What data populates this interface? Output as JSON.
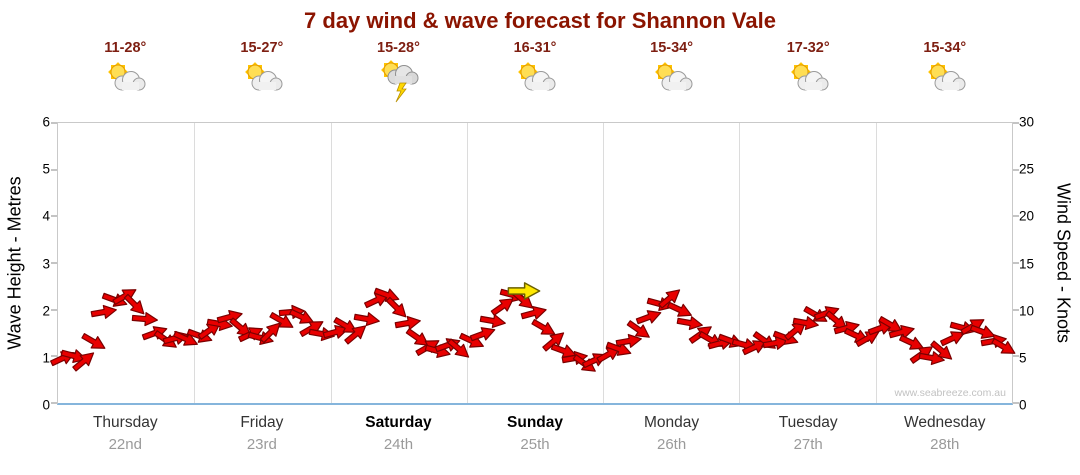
{
  "title": "7 day wind & wave forecast for Shannon Vale",
  "watermark": "www.seabreeze.com.au",
  "days": [
    {
      "name": "Thursday",
      "date": "22nd",
      "temp": "11-28°",
      "icon": "partly-cloudy",
      "bold": false
    },
    {
      "name": "Friday",
      "date": "23rd",
      "temp": "15-27°",
      "icon": "partly-cloudy",
      "bold": false
    },
    {
      "name": "Saturday",
      "date": "24th",
      "temp": "15-28°",
      "icon": "storm",
      "bold": true
    },
    {
      "name": "Sunday",
      "date": "25th",
      "temp": "16-31°",
      "icon": "partly-cloudy",
      "bold": true
    },
    {
      "name": "Monday",
      "date": "26th",
      "temp": "15-34°",
      "icon": "partly-cloudy",
      "bold": false
    },
    {
      "name": "Tuesday",
      "date": "27th",
      "temp": "17-32°",
      "icon": "partly-cloudy",
      "bold": false
    },
    {
      "name": "Wednesday",
      "date": "28th",
      "temp": "15-34°",
      "icon": "partly-cloudy",
      "bold": false
    }
  ],
  "axes": {
    "left_label": "Wave Height - Metres",
    "right_label": "Wind Speed - Knots",
    "left_ticks": [
      0,
      1,
      2,
      3,
      4,
      5,
      6
    ],
    "right_ticks": [
      0,
      5,
      10,
      15,
      20,
      25,
      30
    ],
    "left_range": [
      0,
      6
    ],
    "right_range": [
      0,
      30
    ]
  },
  "colors": {
    "title": "#8B1400",
    "temp": "#7E1F12",
    "arrow_fill": "#E80000",
    "arrow_stroke": "#7A0000",
    "highlight_arrow_fill": "#FFE800",
    "highlight_arrow_stroke": "#6B6000",
    "gridline": "#dcdcdc",
    "bottom_axis": "#85b5dc"
  },
  "chart_data": {
    "type": "scatter",
    "subtype": "wind-direction-arrows",
    "title": "7 day wind & wave forecast for Shannon Vale",
    "x_categories": [
      "Thursday 22nd",
      "Friday 23rd",
      "Saturday 24th",
      "Sunday 25th",
      "Monday 26th",
      "Tuesday 27th",
      "Wednesday 28th"
    ],
    "x_range_days": [
      0,
      7
    ],
    "ylabel_left": "Wave Height - Metres",
    "ylabel_right": "Wind Speed - Knots",
    "ylim_left_metres": [
      0,
      6
    ],
    "ylim_right_knots": [
      0,
      30
    ],
    "grid": "vertical-day-boundaries",
    "arrow_format": [
      "t_days",
      "wind_speed_knots",
      "rotation_deg"
    ],
    "arrows": [
      [
        0.04,
        4.8,
        -25
      ],
      [
        0.115,
        5.0,
        15
      ],
      [
        0.19,
        4.5,
        -40
      ],
      [
        0.265,
        6.5,
        30
      ],
      [
        0.34,
        9.8,
        -10
      ],
      [
        0.415,
        11.0,
        20
      ],
      [
        0.49,
        11.5,
        -30
      ],
      [
        0.565,
        10.5,
        45
      ],
      [
        0.64,
        9.0,
        5
      ],
      [
        0.715,
        7.5,
        -20
      ],
      [
        0.79,
        6.8,
        35
      ],
      [
        0.865,
        7.0,
        -15
      ],
      [
        0.94,
        6.9,
        25
      ],
      [
        1.04,
        7.2,
        20
      ],
      [
        1.115,
        7.8,
        -35
      ],
      [
        1.19,
        8.5,
        10
      ],
      [
        1.265,
        9.2,
        -15
      ],
      [
        1.34,
        8.0,
        40
      ],
      [
        1.415,
        7.4,
        -25
      ],
      [
        1.49,
        7.0,
        15
      ],
      [
        1.565,
        7.6,
        -45
      ],
      [
        1.64,
        8.8,
        30
      ],
      [
        1.715,
        9.8,
        -5
      ],
      [
        1.79,
        9.2,
        25
      ],
      [
        1.865,
        8.0,
        -30
      ],
      [
        1.94,
        7.4,
        10
      ],
      [
        2.04,
        7.6,
        -15
      ],
      [
        2.115,
        8.2,
        30
      ],
      [
        2.19,
        7.4,
        -40
      ],
      [
        2.265,
        9.0,
        10
      ],
      [
        2.34,
        11.0,
        -25
      ],
      [
        2.415,
        11.6,
        20
      ],
      [
        2.49,
        10.2,
        45
      ],
      [
        2.565,
        8.6,
        -10
      ],
      [
        2.64,
        7.0,
        35
      ],
      [
        2.715,
        6.0,
        -30
      ],
      [
        2.79,
        5.6,
        15
      ],
      [
        2.865,
        6.2,
        -20
      ],
      [
        2.94,
        5.8,
        40
      ],
      [
        3.04,
        6.6,
        25
      ],
      [
        3.115,
        7.4,
        -20
      ],
      [
        3.19,
        8.8,
        10
      ],
      [
        3.265,
        10.4,
        -35
      ],
      [
        3.34,
        11.6,
        15
      ],
      [
        3.415,
        11.0,
        40
      ],
      [
        3.49,
        9.6,
        -15
      ],
      [
        3.565,
        8.0,
        30
      ],
      [
        3.64,
        6.6,
        -40
      ],
      [
        3.715,
        5.6,
        20
      ],
      [
        3.79,
        4.8,
        -10
      ],
      [
        3.865,
        4.2,
        35
      ],
      [
        3.94,
        4.6,
        -25
      ],
      [
        4.04,
        5.2,
        -30
      ],
      [
        4.115,
        5.8,
        20
      ],
      [
        4.19,
        6.6,
        -10
      ],
      [
        4.265,
        7.8,
        35
      ],
      [
        4.34,
        9.2,
        -20
      ],
      [
        4.415,
        10.6,
        15
      ],
      [
        4.49,
        11.2,
        -40
      ],
      [
        4.565,
        10.0,
        25
      ],
      [
        4.64,
        8.6,
        10
      ],
      [
        4.715,
        7.4,
        -35
      ],
      [
        4.79,
        6.8,
        30
      ],
      [
        4.865,
        6.4,
        -15
      ],
      [
        4.94,
        6.6,
        20
      ],
      [
        5.04,
        6.2,
        15
      ],
      [
        5.115,
        6.0,
        -25
      ],
      [
        5.19,
        6.6,
        35
      ],
      [
        5.265,
        6.4,
        -10
      ],
      [
        5.34,
        7.0,
        20
      ],
      [
        5.415,
        7.8,
        -40
      ],
      [
        5.49,
        8.6,
        10
      ],
      [
        5.565,
        9.4,
        30
      ],
      [
        5.64,
        9.6,
        -20
      ],
      [
        5.715,
        8.8,
        40
      ],
      [
        5.79,
        8.0,
        -15
      ],
      [
        5.865,
        7.2,
        25
      ],
      [
        5.94,
        7.0,
        -30
      ],
      [
        6.04,
        8.0,
        -20
      ],
      [
        6.115,
        8.4,
        30
      ],
      [
        6.19,
        7.6,
        -15
      ],
      [
        6.265,
        6.4,
        25
      ],
      [
        6.34,
        5.2,
        -35
      ],
      [
        6.415,
        4.8,
        10
      ],
      [
        6.49,
        5.6,
        40
      ],
      [
        6.565,
        7.0,
        -25
      ],
      [
        6.64,
        8.0,
        15
      ],
      [
        6.715,
        8.2,
        -30
      ],
      [
        6.79,
        7.6,
        20
      ],
      [
        6.865,
        6.6,
        -10
      ],
      [
        6.94,
        6.0,
        30
      ]
    ],
    "highlight_arrow": [
      3.42,
      12,
      0
    ]
  }
}
